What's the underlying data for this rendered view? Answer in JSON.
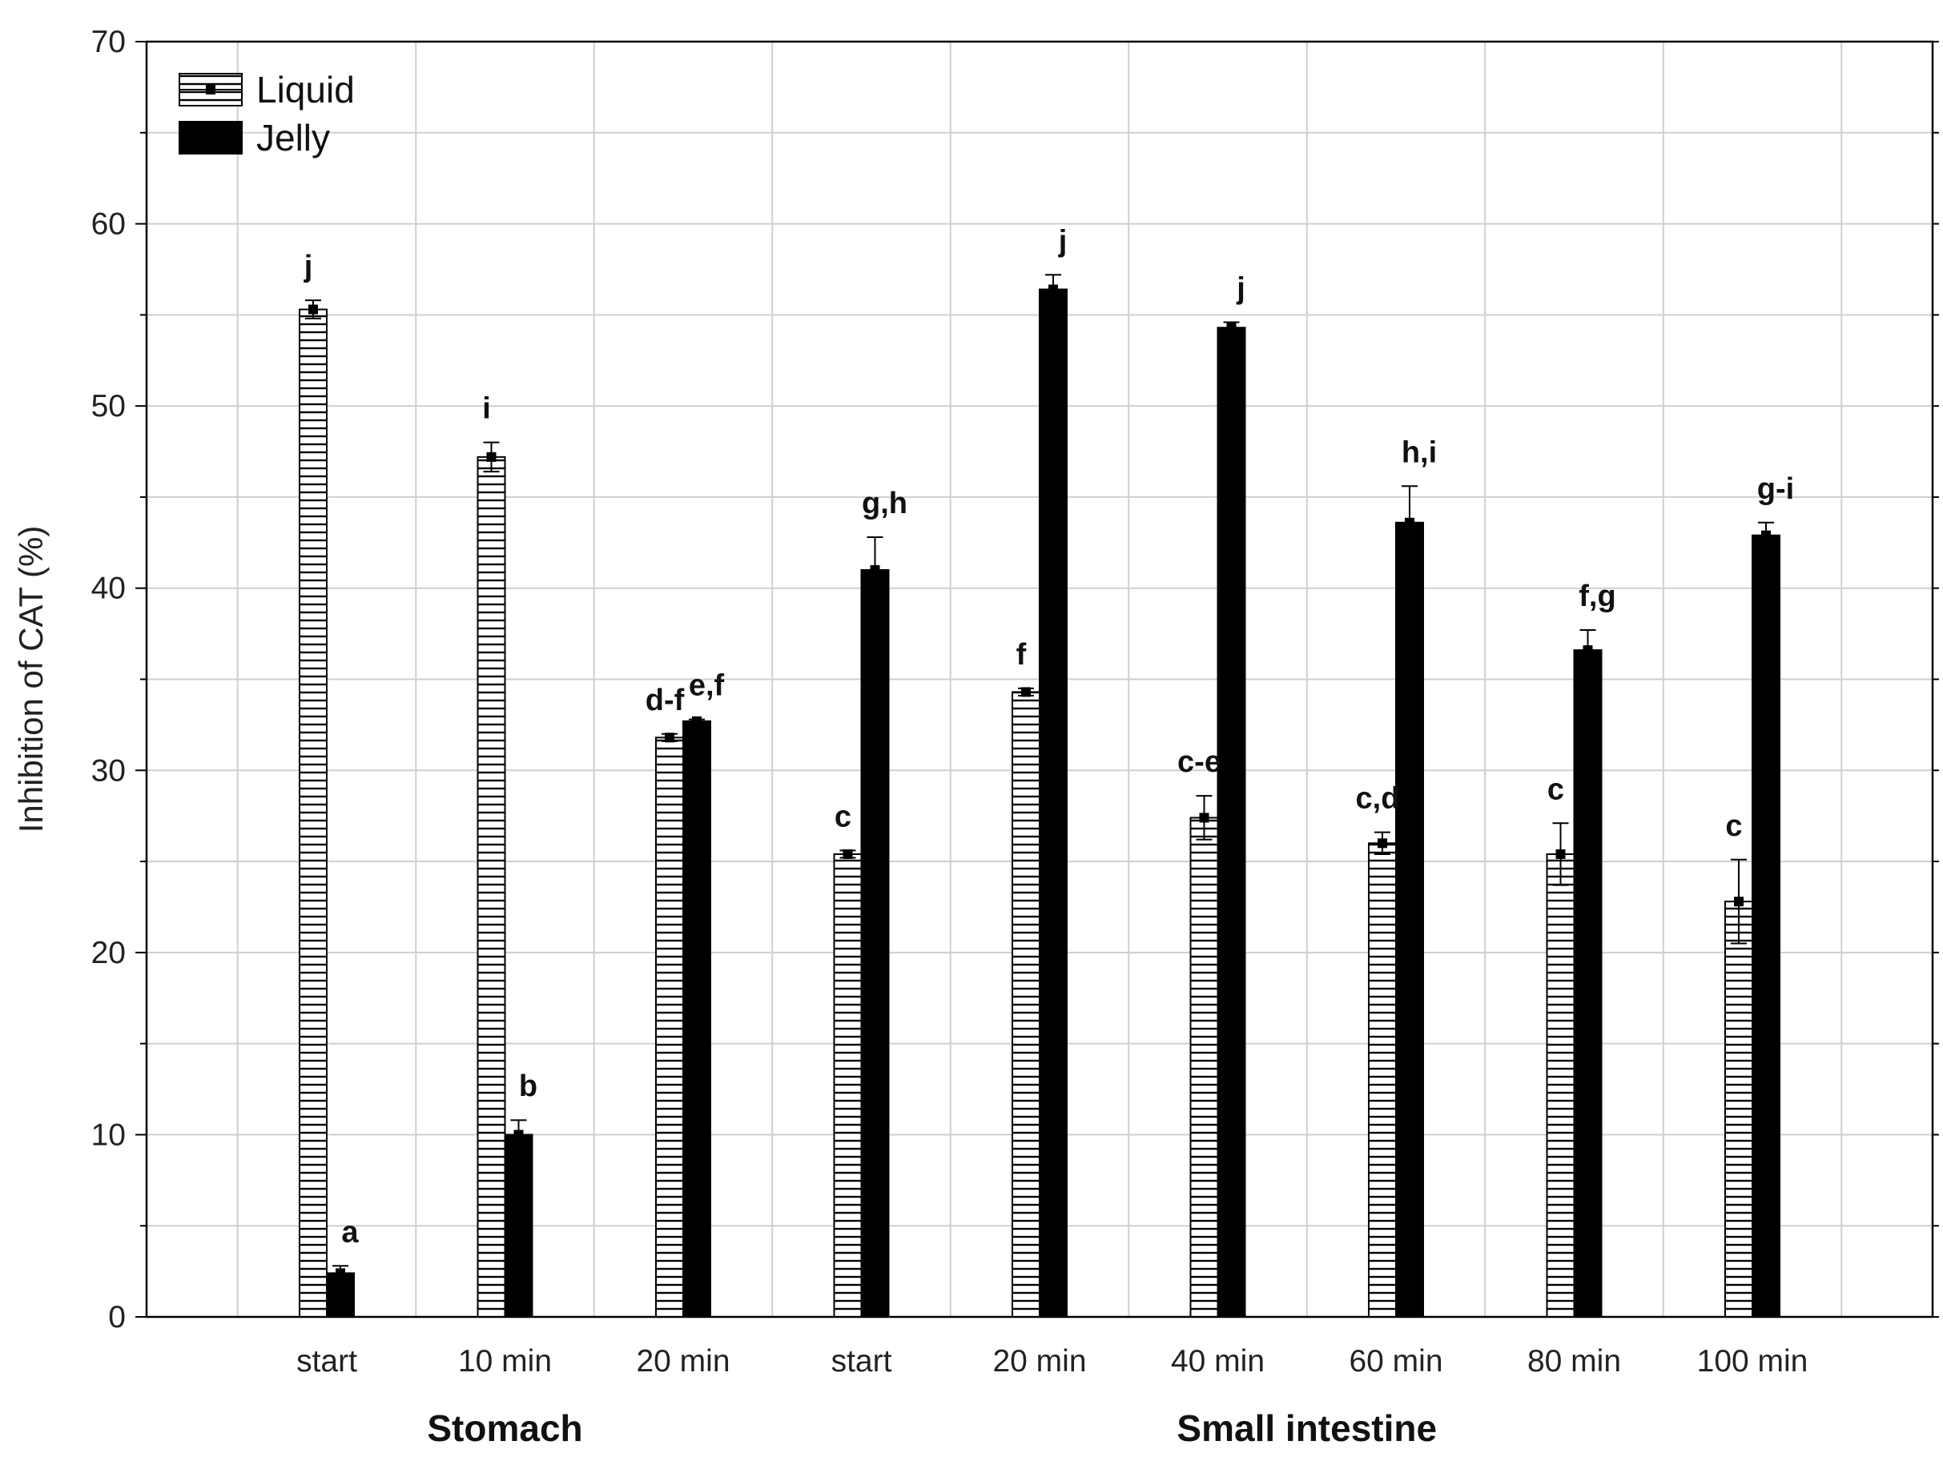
{
  "chart_data": {
    "type": "bar",
    "ylabel": "Inhibition of CAT (%)",
    "xlabel": "",
    "ylim": [
      0,
      70
    ],
    "yticks": [
      0,
      10,
      20,
      30,
      40,
      50,
      60,
      70
    ],
    "grid": true,
    "legend_position": "top-left",
    "categories": [
      "start",
      "10 min",
      "20 min",
      "start",
      "20 min",
      "40 min",
      "60 min",
      "80 min",
      "100 min"
    ],
    "groups": [
      {
        "label": "Stomach",
        "categories": [
          0,
          1,
          2
        ]
      },
      {
        "label": "Small intestine",
        "categories": [
          3,
          4,
          5,
          6,
          7,
          8
        ]
      }
    ],
    "series": [
      {
        "name": "Liquid",
        "style": "horizontal-hatch",
        "color": "#ffffff",
        "values": [
          55.3,
          47.2,
          31.8,
          25.4,
          34.3,
          27.4,
          26.0,
          25.4,
          22.8
        ],
        "errors": [
          0.5,
          0.8,
          0.2,
          0.2,
          0.2,
          1.2,
          0.6,
          1.7,
          2.3
        ],
        "letters": [
          "j",
          "i",
          "d-f",
          "c",
          "f",
          "c-e",
          "c,d",
          "c",
          "c"
        ]
      },
      {
        "name": "Jelly",
        "style": "solid",
        "color": "#000000",
        "values": [
          2.4,
          10.0,
          32.7,
          41.0,
          56.4,
          54.3,
          43.6,
          36.6,
          42.9
        ],
        "errors": [
          0.4,
          0.8,
          0.1,
          1.8,
          0.8,
          0.3,
          2.0,
          1.1,
          0.7
        ],
        "letters": [
          "a",
          "b",
          "e,f",
          "g,h",
          "j",
          "j",
          "h,i",
          "f,g",
          "g-i"
        ]
      }
    ]
  }
}
